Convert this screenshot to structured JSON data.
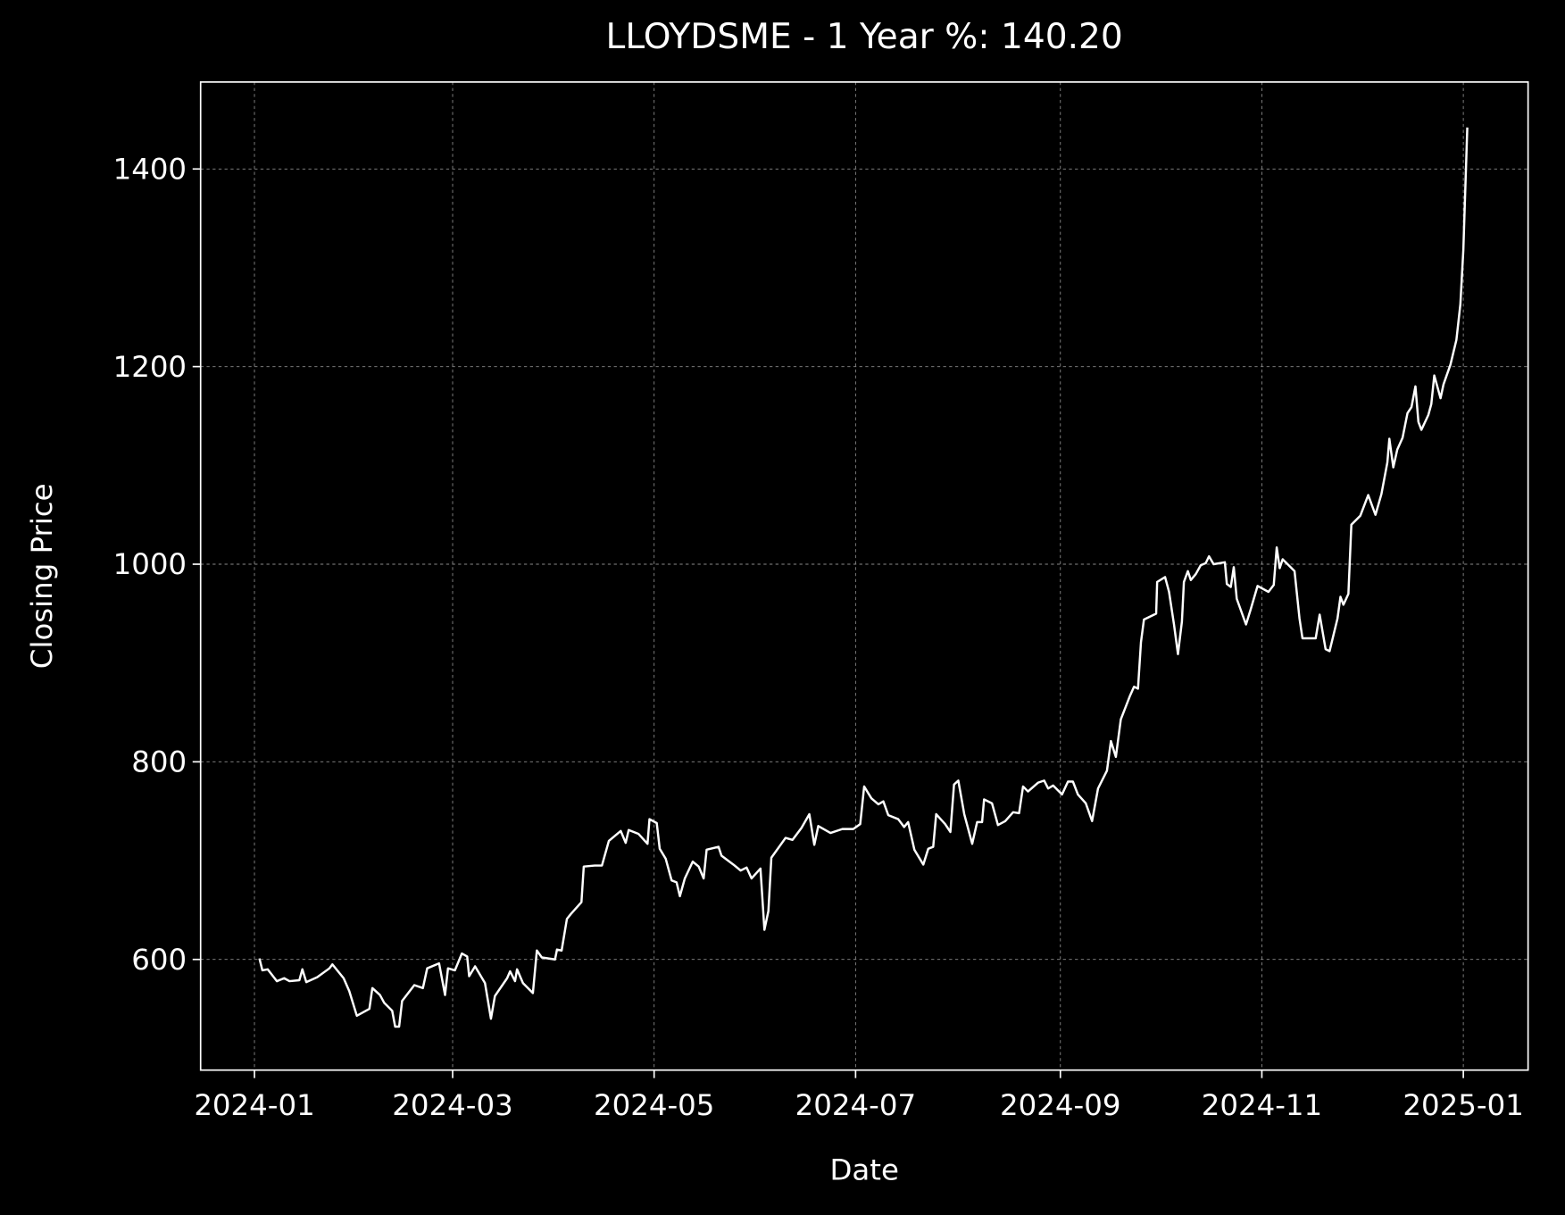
{
  "chart_data": {
    "type": "line",
    "title": "LLOYDSME - 1 Year %: 140.20",
    "x_label": "Date",
    "y_label": "Closing Price",
    "x": [
      1.5,
      2.4,
      4,
      6.8,
      9,
      10.6,
      13.6,
      14.5,
      15.7,
      19,
      22.7,
      23.6,
      27,
      28.7,
      31,
      34.8,
      35.7,
      38,
      39.3,
      41.7,
      42.6,
      43.8,
      44.7,
      48.4,
      51,
      52.3,
      55.9,
      57.7,
      58.6,
      60.7,
      62.8,
      64.4,
      65,
      66.8,
      69.8,
      71.6,
      72.8,
      76.5,
      77.4,
      78.9,
      79.5,
      81.3,
      84.3,
      85.5,
      87,
      91,
      91.6,
      93,
      94.6,
      95.8,
      99,
      99.7,
      103,
      105.2,
      107.3,
      110.9,
      112.4,
      113.3,
      116.3,
      119,
      119.6,
      121.8,
      122.7,
      124.5,
      126.3,
      127.8,
      128.8,
      130.3,
      132.7,
      134.5,
      136,
      136.9,
      140.5,
      141.4,
      145,
      147.2,
      149,
      150.5,
      153.2,
      154.4,
      155.6,
      156.5,
      160.8,
      162.9,
      165.6,
      168,
      169.5,
      170.7,
      174.4,
      178,
      181.3,
      183.4,
      184.6,
      186.8,
      188.9,
      190.4,
      191.9,
      194.9,
      196.7,
      197.9,
      199.8,
      202.5,
      204,
      205.5,
      206.4,
      209.1,
      210.7,
      211.8,
      213.1,
      214.9,
      217.3,
      218.8,
      220.3,
      220.9,
      223.3,
      225.1,
      227.3,
      229.7,
      231.5,
      232.7,
      234.2,
      237.3,
      239.1,
      240.3,
      241.8,
      244.5,
      246.3,
      247.8,
      249.3,
      251.7,
      253.6,
      255.4,
      258.1,
      259.3,
      260.8,
      262.3,
      265.1,
      266.3,
      267.5,
      268.4,
      269.3,
      273,
      273.3,
      275.7,
      276.9,
      278.4,
      279.6,
      280.8,
      281.4,
      282.6,
      283.5,
      285,
      286.5,
      288,
      289,
      290.4,
      293.8,
      294.4,
      295.6,
      296.5,
      297.4,
      300.2,
      301.6,
      303.7,
      307,
      308.6,
      309.5,
      310.4,
      311.3,
      314.9,
      316.4,
      317.3,
      321.3,
      322.5,
      324.3,
      325.5,
      327.9,
      328.8,
      329.7,
      331.2,
      332.1,
      334.8,
      337.2,
      339.4,
      341.2,
      343,
      343.6,
      344.8,
      346,
      347.6,
      349.1,
      350.3,
      351.5,
      352.4,
      353.3,
      355.4,
      356.3,
      357.2,
      359.1,
      360,
      362.1,
      363.9,
      365.1,
      366,
      367.2
    ],
    "values": [
      601,
      589,
      590,
      578,
      581,
      578,
      579,
      590,
      577,
      582,
      591,
      595,
      581,
      568,
      543,
      550,
      571,
      564,
      556,
      548,
      532,
      532,
      558,
      574,
      571,
      591,
      596,
      564,
      591,
      589,
      606,
      603,
      583,
      593,
      576,
      540,
      563,
      581,
      588,
      578,
      590,
      576,
      566,
      609,
      602,
      600,
      610,
      609,
      641,
      646,
      658,
      694,
      695,
      695,
      720,
      730,
      718,
      731,
      727,
      717,
      742,
      738,
      712,
      702,
      680,
      678,
      664,
      682,
      699,
      694,
      682,
      711,
      714,
      705,
      696,
      690,
      693,
      682,
      692,
      630,
      649,
      703,
      723,
      721,
      733,
      747,
      716,
      735,
      728,
      732,
      732,
      737,
      775,
      763,
      757,
      760,
      746,
      742,
      734,
      739,
      711,
      696,
      712,
      714,
      747,
      737,
      729,
      777,
      781,
      747,
      717,
      739,
      739,
      762,
      758,
      736,
      740,
      749,
      748,
      775,
      770,
      779,
      781,
      773,
      776,
      767,
      780,
      780,
      767,
      758,
      740,
      773,
      791,
      821,
      805,
      843,
      867,
      876,
      874,
      921,
      944,
      950,
      982,
      987,
      972,
      939,
      909,
      942,
      982,
      993,
      984,
      990,
      999,
      1001,
      1008,
      1000,
      1002,
      980,
      977,
      997,
      965,
      939,
      954,
      978,
      972,
      979,
      1017,
      996,
      1005,
      993,
      945,
      925,
      925,
      949,
      914,
      912,
      945,
      967,
      959,
      970,
      1040,
      1049,
      1070,
      1050,
      1071,
      1103,
      1127,
      1098,
      1116,
      1128,
      1153,
      1159,
      1180,
      1144,
      1136,
      1151,
      1162,
      1191,
      1168,
      1182,
      1202,
      1227,
      1263,
      1318,
      1442
    ],
    "color": "#ffffff",
    "xlim": [
      -16.3,
      385.6
    ],
    "ylim": [
      488,
      1488
    ],
    "xticks": [
      {
        "value": 0,
        "label": "2024-01"
      },
      {
        "value": 60,
        "label": "2024-03"
      },
      {
        "value": 121,
        "label": "2024-05"
      },
      {
        "value": 182,
        "label": "2024-07"
      },
      {
        "value": 244,
        "label": "2024-09"
      },
      {
        "value": 305,
        "label": "2024-11"
      },
      {
        "value": 366,
        "label": "2025-01"
      }
    ],
    "yticks": [
      600,
      800,
      1000,
      1200,
      1400
    ],
    "grid": true
  }
}
